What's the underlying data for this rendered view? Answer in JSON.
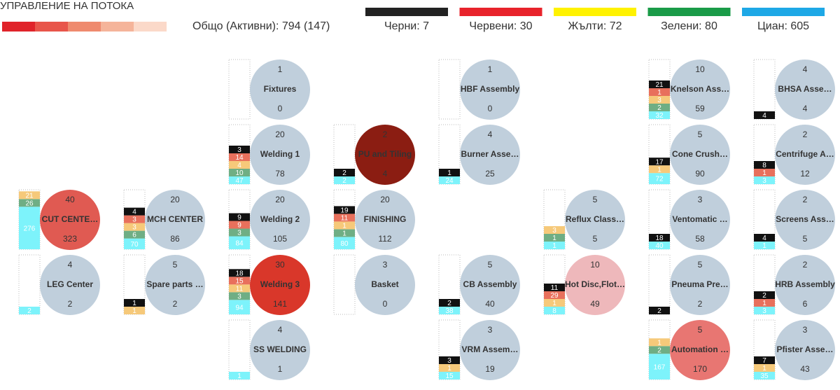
{
  "header": {
    "title": "УПРАВЛЕНИЕ НА ПОТОКА",
    "scale_colors": [
      "#e0232a",
      "#e8554a",
      "#ef8a6e",
      "#f5b49a",
      "#fbd9c9"
    ],
    "total": "Общо (Активни): 794 (147)",
    "legend": [
      {
        "label": "Черни: 7",
        "color": "#222222"
      },
      {
        "label": "Червени: 30",
        "color": "#e8232b"
      },
      {
        "label": "Жълти: 72",
        "color": "#fff200"
      },
      {
        "label": "Зелени: 80",
        "color": "#1a9b48"
      },
      {
        "label": "Циан:  605",
        "color": "#1ea8e6"
      }
    ]
  },
  "segment_colors": [
    "#111111",
    "#e8705c",
    "#f6c97a",
    "#6fae84",
    "#7df3fb"
  ],
  "rows": [
    [
      null,
      null,
      {
        "top": 1,
        "name": "Fixtures",
        "bottom": 0,
        "color": "#c0cfdc",
        "segments": [
          0,
          0,
          0,
          0,
          0
        ]
      },
      null,
      {
        "top": 1,
        "name": "HBF Assembly",
        "bottom": 0,
        "color": "#c0cfdc",
        "segments": [
          0,
          0,
          0,
          0,
          0
        ]
      },
      null,
      {
        "top": 10,
        "name": "Knelson Ass…",
        "bottom": 59,
        "color": "#c0cfdc",
        "segments": [
          21,
          1,
          3,
          2,
          32
        ]
      },
      {
        "top": 4,
        "name": "BHSA Asse…",
        "bottom": 4,
        "color": "#c0cfdc",
        "segments": [
          4,
          0,
          0,
          0,
          0
        ]
      }
    ],
    [
      null,
      null,
      {
        "top": 20,
        "name": "Welding 1",
        "bottom": 78,
        "color": "#c0cfdc",
        "segments": [
          3,
          14,
          4,
          10,
          47
        ]
      },
      {
        "top": 2,
        "name": "PU and Tiling",
        "bottom": 4,
        "color": "#8b1d12",
        "segments": [
          2,
          0,
          0,
          0,
          2
        ]
      },
      {
        "top": 4,
        "name": "Burner Asse…",
        "bottom": 25,
        "color": "#c0cfdc",
        "segments": [
          1,
          0,
          0,
          0,
          24
        ]
      },
      null,
      {
        "top": 5,
        "name": "Cone Crush…",
        "bottom": 90,
        "color": "#c0cfdc",
        "segments": [
          17,
          0,
          1,
          0,
          72
        ]
      },
      {
        "top": 2,
        "name": "Centrifuge A…",
        "bottom": 12,
        "color": "#c0cfdc",
        "segments": [
          8,
          1,
          0,
          0,
          3
        ]
      }
    ],
    [
      {
        "top": 40,
        "name": "CUT CENTE…",
        "bottom": 323,
        "color": "#e05a52",
        "segments": [
          0,
          0,
          21,
          26,
          276
        ]
      },
      {
        "top": 20,
        "name": "MCH CENTER",
        "bottom": 86,
        "color": "#c0cfdc",
        "segments": [
          4,
          3,
          3,
          6,
          70
        ]
      },
      {
        "top": 20,
        "name": "Welding 2",
        "bottom": 105,
        "color": "#c0cfdc",
        "segments": [
          9,
          9,
          0,
          3,
          84
        ]
      },
      {
        "top": 20,
        "name": "FINISHING",
        "bottom": 112,
        "color": "#c0cfdc",
        "segments": [
          19,
          11,
          1,
          1,
          80
        ]
      },
      null,
      {
        "top": 5,
        "name": "Reflux Class…",
        "bottom": 5,
        "color": "#c0cfdc",
        "segments": [
          0,
          0,
          3,
          1,
          1
        ]
      },
      {
        "top": 3,
        "name": "Ventomatic …",
        "bottom": 58,
        "color": "#c0cfdc",
        "segments": [
          18,
          0,
          0,
          0,
          40
        ]
      },
      {
        "top": 2,
        "name": "Screens Ass…",
        "bottom": 5,
        "color": "#c0cfdc",
        "segments": [
          4,
          0,
          0,
          0,
          1
        ]
      }
    ],
    [
      {
        "top": 4,
        "name": "LEG Center",
        "bottom": 2,
        "color": "#c0cfdc",
        "segments": [
          0,
          0,
          0,
          0,
          2
        ]
      },
      {
        "top": 5,
        "name": "Spare parts …",
        "bottom": 2,
        "color": "#c0cfdc",
        "segments": [
          1,
          0,
          1,
          0,
          0
        ]
      },
      {
        "top": 30,
        "name": "Welding 3",
        "bottom": 141,
        "color": "#d9372a",
        "segments": [
          18,
          15,
          11,
          3,
          94
        ]
      },
      {
        "top": 3,
        "name": "Basket",
        "bottom": 0,
        "color": "#c0cfdc",
        "segments": [
          0,
          0,
          0,
          0,
          0
        ]
      },
      {
        "top": 5,
        "name": "CB Assembly",
        "bottom": 40,
        "color": "#c0cfdc",
        "segments": [
          2,
          0,
          0,
          0,
          38
        ]
      },
      {
        "top": 10,
        "name": "Hot Disc,Flot…",
        "bottom": 49,
        "color": "#eeb8bb",
        "segments": [
          11,
          29,
          1,
          0,
          8
        ]
      },
      {
        "top": 5,
        "name": "Pneuma Pre…",
        "bottom": 2,
        "color": "#c0cfdc",
        "segments": [
          2,
          0,
          0,
          0,
          0
        ]
      },
      {
        "top": 2,
        "name": "HRB Assembly",
        "bottom": 6,
        "color": "#c0cfdc",
        "segments": [
          2,
          1,
          0,
          0,
          3
        ]
      }
    ],
    [
      null,
      null,
      {
        "top": 4,
        "name": "SS WELDING",
        "bottom": 1,
        "color": "#c0cfdc",
        "segments": [
          0,
          0,
          0,
          0,
          1
        ]
      },
      null,
      {
        "top": 3,
        "name": "VRM Assem…",
        "bottom": 19,
        "color": "#c0cfdc",
        "segments": [
          3,
          0,
          1,
          0,
          15
        ]
      },
      null,
      {
        "top": 5,
        "name": "Automation …",
        "bottom": 170,
        "color": "#e87672",
        "segments": [
          0,
          0,
          1,
          2,
          167
        ]
      },
      {
        "top": 3,
        "name": "Pfister Asse…",
        "bottom": 43,
        "color": "#c0cfdc",
        "segments": [
          7,
          0,
          1,
          0,
          35
        ]
      }
    ]
  ]
}
